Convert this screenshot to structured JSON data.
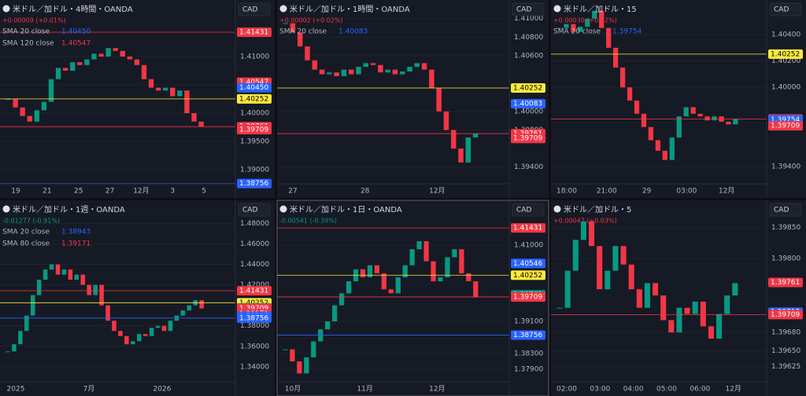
{
  "panes": [
    {
      "title": "米ドル／加ドル・4時間・OANDA",
      "currency": "CAD",
      "change": "+0.00009 (+0.01%)",
      "change_color": "#f23645",
      "legend": [
        {
          "name": "SMA 20 close",
          "value": "1.40450",
          "color": "#2962ff"
        },
        {
          "name": "SMA 120 close",
          "value": "1.40547",
          "color": "#f23645"
        }
      ],
      "ylim": [
        1.3875,
        1.42
      ],
      "yticks": [
        {
          "value": 1.41,
          "label": "1.41000"
        },
        {
          "value": 1.405,
          "label": "1.40500"
        },
        {
          "value": 1.4,
          "label": "1.40000"
        },
        {
          "value": 1.395,
          "label": "1.39500"
        },
        {
          "value": 1.39,
          "label": "1.39000"
        }
      ],
      "xticks": [
        "19",
        "21",
        "25",
        "27",
        "12月",
        "3",
        "5"
      ],
      "levels": [
        {
          "value": 1.41431,
          "label": "1.41431",
          "color": "#f23645",
          "line": true
        },
        {
          "value": 1.40547,
          "label": "1.40547",
          "color": "#f23645",
          "line": false
        },
        {
          "value": 1.4045,
          "label": "1.40450",
          "color": "#2962ff",
          "line": false
        },
        {
          "value": 1.40252,
          "label": "1.40252",
          "color": "#ffeb3b",
          "line": true
        },
        {
          "value": 1.39761,
          "label": "1.39761",
          "color": "#f23645",
          "line": true
        },
        {
          "value": 1.39709,
          "label": "1.39709",
          "color": "#f23645",
          "line": false
        },
        {
          "value": 1.38756,
          "label": "1.38756",
          "color": "#2962ff",
          "line": true
        }
      ],
      "closes": [
        1.4025,
        1.401,
        1.3995,
        1.3985,
        1.4005,
        1.402,
        1.406,
        1.408,
        1.4075,
        1.409,
        1.4085,
        1.4095,
        1.4105,
        1.41,
        1.4115,
        1.411,
        1.41,
        1.4095,
        1.4085,
        1.406,
        1.4045,
        1.404,
        1.4045,
        1.403,
        1.404,
        1.4,
        1.3985,
        1.3976
      ]
    },
    {
      "title": "米ドル／加ドル・1時間・OANDA",
      "currency": "CAD",
      "change": "+0.00002 (+0.02%)",
      "change_color": "#f23645",
      "legend": [
        {
          "name": "SMA 20 close",
          "value": "1.40083",
          "color": "#2962ff"
        }
      ],
      "ylim": [
        1.3922,
        1.412
      ],
      "yticks": [
        {
          "value": 1.41,
          "label": "1.41000"
        },
        {
          "value": 1.408,
          "label": "1.40800"
        },
        {
          "value": 1.406,
          "label": "1.40600"
        },
        {
          "value": 1.4,
          "label": "1.40000"
        },
        {
          "value": 1.398,
          "label": "1.39800"
        },
        {
          "value": 1.394,
          "label": "1.39400"
        }
      ],
      "xticks": [
        "27",
        "28",
        "12月"
      ],
      "levels": [
        {
          "value": 1.40252,
          "label": "1.40252",
          "color": "#ffeb3b",
          "line": true
        },
        {
          "value": 1.40083,
          "label": "1.40083",
          "color": "#2962ff",
          "line": false
        },
        {
          "value": 1.39761,
          "label": "1.39761",
          "color": "#f23645",
          "line": true
        },
        {
          "value": 1.39709,
          "label": "1.39709",
          "color": "#f23645",
          "line": false
        }
      ],
      "closes": [
        1.4095,
        1.4085,
        1.407,
        1.4055,
        1.4045,
        1.404,
        1.4042,
        1.4038,
        1.4045,
        1.404,
        1.4048,
        1.4052,
        1.405,
        1.4042,
        1.4045,
        1.404,
        1.4043,
        1.4048,
        1.4052,
        1.4045,
        1.4025,
        1.4,
        1.398,
        1.396,
        1.3945,
        1.3972,
        1.3976
      ]
    },
    {
      "title": "米ドル／加ドル・15",
      "currency": "CAD",
      "change": "+0.00030 (+0.02%)",
      "change_color": "#f23645",
      "legend": [
        {
          "name": "SMA 20 close",
          "value": "1.39754",
          "color": "#2962ff"
        }
      ],
      "ylim": [
        1.39269,
        1.40662
      ],
      "yticks": [
        {
          "value": 1.404,
          "label": "1.40400"
        },
        {
          "value": 1.402,
          "label": "1.40200"
        },
        {
          "value": 1.4,
          "label": "1.40000"
        },
        {
          "value": 1.394,
          "label": "1.39400"
        }
      ],
      "xticks": [
        "18:00",
        "21:00",
        "29",
        "03:00",
        "12月"
      ],
      "levels": [
        {
          "value": 1.40252,
          "label": "1.40252",
          "color": "#ffeb3b",
          "line": true
        },
        {
          "value": 1.39761,
          "label": "1.39761",
          "color": "#f23645",
          "line": true
        },
        {
          "value": 1.39754,
          "label": "1.39754",
          "color": "#2962ff",
          "line": false
        },
        {
          "value": 1.39709,
          "label": "1.39709",
          "color": "#f23645",
          "line": false
        }
      ],
      "closes": [
        1.4045,
        1.4048,
        1.4042,
        1.4046,
        1.4052,
        1.4058,
        1.4045,
        1.403,
        1.4015,
        1.4,
        1.399,
        1.398,
        1.397,
        1.396,
        1.3952,
        1.3945,
        1.3962,
        1.3978,
        1.3985,
        1.398,
        1.3978,
        1.3975,
        1.3978,
        1.3974,
        1.3972,
        1.3976
      ]
    },
    {
      "title": "米ドル／加ドル・1週・OANDA",
      "currency": "CAD",
      "change": "-0.01277 (-0.91%)",
      "change_color": "#089981",
      "legend": [
        {
          "name": "SMA 20 close",
          "value": "1.38943",
          "color": "#2962ff"
        },
        {
          "name": "SMA 80 close",
          "value": "1.39171",
          "color": "#f23645"
        }
      ],
      "ylim": [
        1.3253,
        1.5025
      ],
      "yticks": [
        {
          "value": 1.48,
          "label": "1.48000"
        },
        {
          "value": 1.46,
          "label": "1.46000"
        },
        {
          "value": 1.44,
          "label": "1.44000"
        },
        {
          "value": 1.42,
          "label": "1.42000"
        },
        {
          "value": 1.38,
          "label": "1.38000"
        },
        {
          "value": 1.36,
          "label": "1.36000"
        },
        {
          "value": 1.34,
          "label": "1.34000"
        }
      ],
      "xticks": [
        "2025",
        "7月",
        "2026"
      ],
      "levels": [
        {
          "value": 1.41431,
          "label": "1.41431",
          "color": "#f23645",
          "line": true
        },
        {
          "value": 1.40252,
          "label": "1.40252",
          "color": "#ffeb3b",
          "line": true
        },
        {
          "value": 1.39761,
          "label": "1.39761",
          "color": "#089981",
          "line": false
        },
        {
          "value": 1.39709,
          "label": "1.39709",
          "color": "#f23645",
          "line": false
        },
        {
          "value": 1.39171,
          "label": "1.39171",
          "color": "#f23645",
          "line": false
        },
        {
          "value": 1.38943,
          "label": "1.38943",
          "color": "#2962ff",
          "line": false
        },
        {
          "value": 1.38756,
          "label": "1.38756",
          "color": "#2962ff",
          "line": true
        }
      ],
      "closes": [
        1.355,
        1.362,
        1.375,
        1.39,
        1.41,
        1.425,
        1.435,
        1.44,
        1.43,
        1.435,
        1.425,
        1.43,
        1.42,
        1.41,
        1.42,
        1.4,
        1.385,
        1.375,
        1.37,
        1.362,
        1.365,
        1.372,
        1.37,
        1.378,
        1.38,
        1.375,
        1.385,
        1.39,
        1.395,
        1.4,
        1.405,
        1.397
      ]
    },
    {
      "title": "米ドル／加ドル・1日・OANDA",
      "currency": "CAD",
      "change": "-0.00541 (-0.39%)",
      "change_color": "#089981",
      "legend": [],
      "ylim": [
        1.3759,
        1.4212
      ],
      "yticks": [
        {
          "value": 1.41,
          "label": "1.41000"
        },
        {
          "value": 1.391,
          "label": "1.39100"
        },
        {
          "value": 1.383,
          "label": "1.38300"
        },
        {
          "value": 1.379,
          "label": "1.37900"
        }
      ],
      "xticks": [
        "10月",
        "11月",
        "12月"
      ],
      "levels": [
        {
          "value": 1.41431,
          "label": "1.41431",
          "color": "#f23645",
          "line": true
        },
        {
          "value": 1.40546,
          "label": "1.40546",
          "color": "#2962ff",
          "line": false
        },
        {
          "value": 1.40252,
          "label": "1.40252",
          "color": "#ffeb3b",
          "line": true
        },
        {
          "value": 1.39761,
          "label": "1.39761",
          "color": "#089981",
          "line": false
        },
        {
          "value": 1.39709,
          "label": "1.39709",
          "color": "#f23645",
          "line": true
        },
        {
          "value": 1.38756,
          "label": "1.38756",
          "color": "#2962ff",
          "line": true
        }
      ],
      "closes": [
        1.384,
        1.381,
        1.378,
        1.382,
        1.386,
        1.389,
        1.391,
        1.395,
        1.398,
        1.401,
        1.404,
        1.402,
        1.405,
        1.403,
        1.399,
        1.398,
        1.402,
        1.405,
        1.409,
        1.411,
        1.406,
        1.401,
        1.402,
        1.407,
        1.409,
        1.403,
        1.401,
        1.397
      ]
    },
    {
      "title": "米ドル／加ドル・5",
      "currency": "CAD",
      "change": "+0.00047 (+0.03%)",
      "change_color": "#f23645",
      "legend": [],
      "ylim": [
        1.396,
        1.39894
      ],
      "yticks": [
        {
          "value": 1.3985,
          "label": "1.39850"
        },
        {
          "value": 1.398,
          "label": "1.39800"
        },
        {
          "value": 1.3968,
          "label": "1.39680"
        },
        {
          "value": 1.3965,
          "label": "1.39650"
        },
        {
          "value": 1.39625,
          "label": "1.39625"
        }
      ],
      "xticks": [
        "02:00",
        "03:00",
        "04:00",
        "05:00",
        "06:00",
        "12月"
      ],
      "levels": [
        {
          "value": 1.39761,
          "label": "1.39761",
          "color": "#f23645",
          "line": false
        },
        {
          "value": 1.39713,
          "label": "1.39713",
          "color": "#2962ff",
          "line": false
        },
        {
          "value": 1.39709,
          "label": "1.39709",
          "color": "#f23645",
          "line": true
        }
      ],
      "closes": [
        1.3972,
        1.3978,
        1.3983,
        1.3986,
        1.3982,
        1.3975,
        1.3978,
        1.3982,
        1.3979,
        1.3975,
        1.3972,
        1.3976,
        1.3974,
        1.397,
        1.3968,
        1.3972,
        1.3971,
        1.3973,
        1.3969,
        1.3967,
        1.3971,
        1.3974,
        1.3976
      ]
    }
  ]
}
